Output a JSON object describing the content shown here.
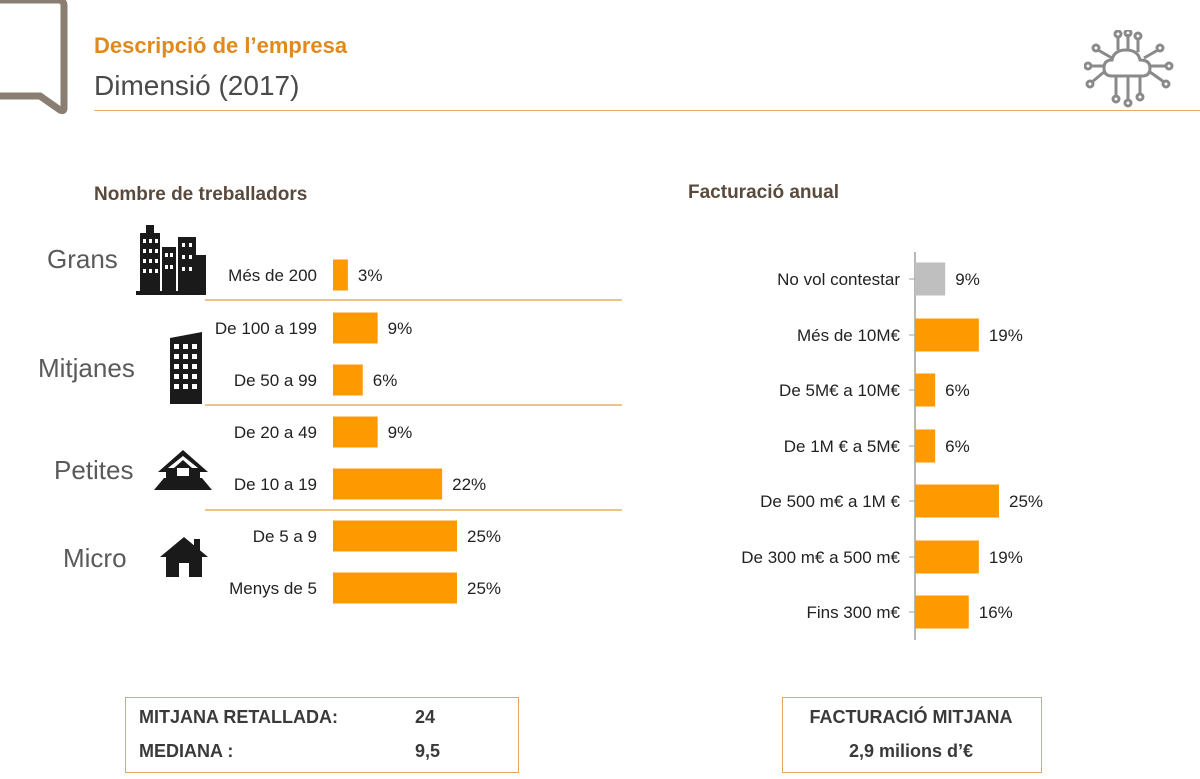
{
  "header": {
    "title": "Descripció de l’empresa",
    "subtitle": "Dimensió (2017)"
  },
  "colors": {
    "accent": "#e08a1e",
    "bar": "#ff9900",
    "bar_neutral": "#bfbfbf",
    "rule": "#e3b062"
  },
  "icons": {
    "logo": "bracket-logo",
    "tech": "cloud-circuit-icon",
    "groups": [
      "skyscrapers-icon",
      "office-tower-icon",
      "house-icon",
      "home-icon"
    ]
  },
  "chart_data": [
    {
      "type": "bar",
      "orientation": "horizontal",
      "title": "Nombre de treballadors",
      "groups": [
        {
          "name": "Grans",
          "categories": [
            "Més de 200"
          ]
        },
        {
          "name": "Mitjanes",
          "categories": [
            "De 100 a 199",
            "De 50 a 99"
          ]
        },
        {
          "name": "Petites",
          "categories": [
            "De 20 a 49",
            "De 10 a 19"
          ]
        },
        {
          "name": "Micro",
          "categories": [
            "De 5 a 9",
            "Menys de 5"
          ]
        }
      ],
      "categories": [
        "Més de 200",
        "De 100 a 199",
        "De 50 a 99",
        "De 20 a 49",
        "De 10 a 19",
        "De 5 a 9",
        "Menys de 5"
      ],
      "values": [
        3,
        9,
        6,
        9,
        22,
        25,
        25
      ],
      "value_labels": [
        "3%",
        "9%",
        "6%",
        "9%",
        "22%",
        "25%",
        "25%"
      ],
      "unit": "%",
      "xlim": [
        0,
        25
      ],
      "grid": false
    },
    {
      "type": "bar",
      "orientation": "horizontal",
      "title": "Facturació anual",
      "categories": [
        "No vol contestar",
        "Més de 10M€",
        "De 5M€ a 10M€",
        "De 1M € a 5M€",
        "De 500 m€ a 1M €",
        "De 300 m€ a 500 m€",
        "Fins 300 m€"
      ],
      "values": [
        9,
        19,
        6,
        6,
        25,
        19,
        16
      ],
      "value_labels": [
        "9%",
        "19%",
        "6%",
        "6%",
        "25%",
        "19%",
        "16%"
      ],
      "bar_colors": [
        "#bfbfbf",
        "#ff9900",
        "#ff9900",
        "#ff9900",
        "#ff9900",
        "#ff9900",
        "#ff9900"
      ],
      "unit": "%",
      "xlim": [
        0,
        25
      ],
      "grid": false
    }
  ],
  "summary_left": {
    "row1_label": "MITJANA RETALLADA:",
    "row1_value": "24",
    "row2_label": "MEDIANA :",
    "row2_value": "9,5"
  },
  "summary_right": {
    "label": "FACTURACIÓ MITJANA",
    "value": "2,9 milions d’€"
  }
}
